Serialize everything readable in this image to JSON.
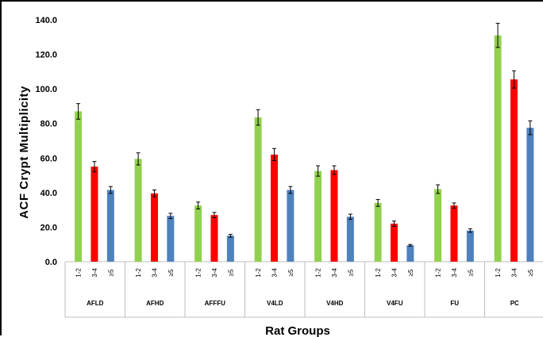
{
  "chart_data": {
    "type": "bar",
    "title": "",
    "xlabel": "Rat Groups",
    "ylabel": "ACF  Crypt  Multiplicity",
    "ylim": [
      0,
      140
    ],
    "yticks": [
      "0.0",
      "20.0",
      "40.0",
      "60.0",
      "80.0",
      "100.0",
      "120.0",
      "140.0"
    ],
    "grid": false,
    "legend": "none",
    "categories": [
      "AFLD",
      "AFHD",
      "AFFFU",
      "V4LD",
      "V4HD",
      "V4FU",
      "FU",
      "PC"
    ],
    "sub_categories": [
      "1-2",
      "3-4",
      "≥5"
    ],
    "series": [
      {
        "color": "#92d050",
        "values": [
          87.0,
          59.5,
          32.5,
          83.5,
          52.5,
          34.0,
          42.0,
          131.0
        ],
        "errors": [
          4.5,
          3.5,
          2.0,
          4.5,
          3.0,
          2.0,
          2.5,
          7.0
        ]
      },
      {
        "color": "#ff0000",
        "values": [
          55.0,
          39.5,
          27.0,
          62.0,
          53.0,
          22.0,
          32.5,
          105.5
        ],
        "errors": [
          3.0,
          2.0,
          1.5,
          3.5,
          2.5,
          1.5,
          1.5,
          5.0
        ]
      },
      {
        "color": "#4f81bd",
        "values": [
          41.5,
          26.5,
          15.0,
          41.5,
          26.0,
          9.5,
          18.0,
          77.5
        ],
        "errors": [
          2.0,
          1.5,
          0.8,
          2.0,
          1.5,
          0.5,
          1.0,
          4.0
        ]
      }
    ]
  }
}
